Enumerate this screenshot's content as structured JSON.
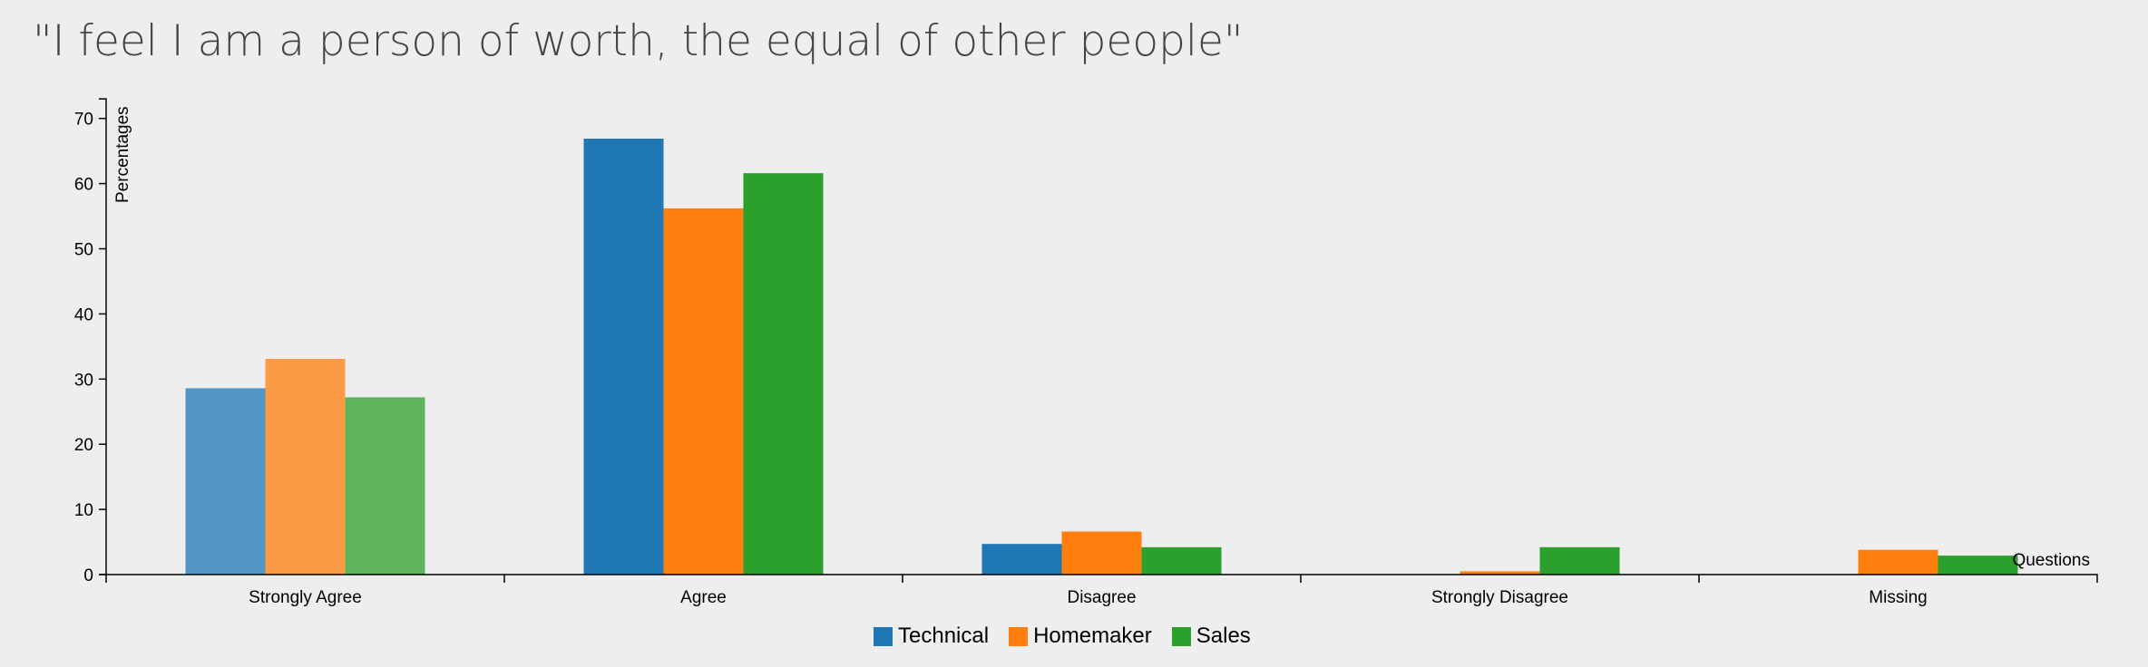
{
  "chart_data": {
    "type": "bar",
    "title": "\"I feel I am a person of worth, the equal of other people\"",
    "xlabel": "Questions",
    "ylabel": "Percentages",
    "ylim": [
      0,
      73
    ],
    "yticks": [
      0,
      10,
      20,
      30,
      40,
      50,
      60,
      70
    ],
    "categories": [
      "Strongly Agree",
      "Agree",
      "Disagree",
      "Strongly Disagree",
      "Missing"
    ],
    "highlighted_category": "Strongly Agree",
    "series": [
      {
        "name": "Technical",
        "color": "#1f77b4",
        "values": [
          28.6,
          66.9,
          4.7,
          0,
          0
        ]
      },
      {
        "name": "Homemaker",
        "color": "#ff7f0e",
        "values": [
          33.1,
          56.2,
          6.6,
          0.5,
          3.8
        ]
      },
      {
        "name": "Sales",
        "color": "#2ca02c",
        "values": [
          27.2,
          61.6,
          4.2,
          4.2,
          2.9
        ]
      }
    ],
    "legend": "bottom-center",
    "grid": false
  }
}
